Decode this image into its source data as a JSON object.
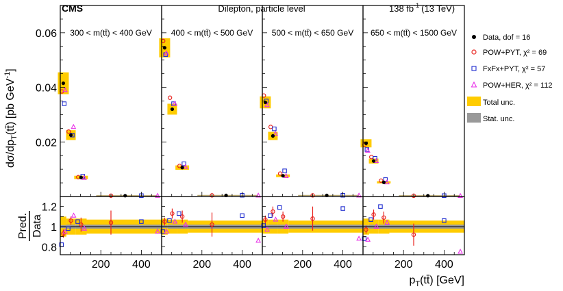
{
  "chart_data": {
    "type": "scatter",
    "header": {
      "experiment": "CMS",
      "channel": "Dilepton, particle level",
      "lumi": "138 fb",
      "lumi_exp": "-1",
      "energy": "(13 TeV)"
    },
    "ylabel_top": {
      "main": "dσ/dp",
      "sub": "T",
      "paren": "(tt̄) [pb GeV",
      "sup": "-1",
      "close": "]"
    },
    "ylabel_bottom": {
      "numerator": "Pred.",
      "denominator": "Data"
    },
    "xlabel": {
      "main": "p",
      "sub": "T",
      "rest": "(tt̄) [GeV]"
    },
    "top_yticks": [
      "0.02",
      "0.04",
      "0.06"
    ],
    "top_ytick_values": [
      0.02,
      0.04,
      0.06
    ],
    "bottom_yticks": [
      "0.8",
      "1",
      "1.2"
    ],
    "bottom_ytick_values": [
      0.8,
      1.0,
      1.2
    ],
    "xticks": [
      "200",
      "400"
    ],
    "xtick_values": [
      200,
      400
    ],
    "xlim": [
      0,
      500
    ],
    "ylim_top": [
      0,
      0.07
    ],
    "ylim_bottom": [
      0.72,
      1.3
    ],
    "bin_edges": [
      0,
      30,
      75,
      130,
      500
    ],
    "legend": [
      {
        "label": "Data, dof = 16",
        "marker": "dot"
      },
      {
        "label": "POW+PYT, χ² = 69",
        "marker": "circle"
      },
      {
        "label": "FxFx+PYT, χ² = 57",
        "marker": "square"
      },
      {
        "label": "POW+HER, χ² = 112",
        "marker": "triangle"
      },
      {
        "label": "Total unc.",
        "marker": "box-total"
      },
      {
        "label": "Stat. unc.",
        "marker": "box-stat"
      }
    ],
    "colors": {
      "data": "#000000",
      "pow_pyt": "#e8231f",
      "fxfx_pyt": "#1f2ccf",
      "pow_her": "#e830e8",
      "total_unc": "#ffcc00",
      "stat_unc": "#999999",
      "model_hline": "#b6a66f"
    },
    "panels": [
      {
        "label": "300 < m(tt̄) < 400 GeV",
        "data": [
          0.0415,
          0.0225,
          0.007,
          0.0003
        ],
        "total_unc": [
          0.004,
          0.0018,
          0.0006,
          8e-05
        ],
        "pow_pyt": [
          0.0385,
          0.0238,
          0.0071,
          0.00031
        ],
        "fxfx_pyt": [
          0.034,
          0.0225,
          0.0074,
          0.00032
        ],
        "pow_her": [
          0.039,
          0.0255,
          0.0068,
          0.00029
        ],
        "ratio": {
          "pow_pyt": [
            0.93,
            1.06,
            1.02,
            1.04
          ],
          "fxfx_pyt": [
            0.82,
            0.98,
            1.05,
            1.05
          ],
          "pow_her": [
            0.95,
            1.11,
            0.98,
            0.95
          ],
          "err": [
            0.04,
            0.04,
            0.07,
            0.12
          ],
          "total_band": [
            0.1,
            0.08,
            0.08,
            0.07
          ],
          "stat_band": [
            0.015,
            0.02,
            0.02,
            0.02
          ]
        }
      },
      {
        "label": "400 < m(tt̄) < 500 GeV",
        "data": [
          0.0545,
          0.032,
          0.0106,
          0.0004
        ],
        "total_unc": [
          0.0035,
          0.002,
          0.0008,
          0.0001
        ],
        "pow_pyt": [
          0.057,
          0.0362,
          0.0112,
          0.00042
        ],
        "fxfx_pyt": [
          0.052,
          0.034,
          0.012,
          0.00045
        ],
        "pow_her": [
          0.0525,
          0.034,
          0.0108,
          0.00036
        ],
        "ratio": {
          "pow_pyt": [
            1.05,
            1.13,
            1.1,
            1.02
          ],
          "fxfx_pyt": [
            0.95,
            1.06,
            1.13,
            1.11
          ],
          "pow_her": [
            0.95,
            1.05,
            1.02,
            0.86
          ],
          "err": [
            0.04,
            0.05,
            0.06,
            0.12
          ],
          "total_band": [
            0.08,
            0.07,
            0.07,
            0.06
          ],
          "stat_band": [
            0.015,
            0.02,
            0.02,
            0.02
          ]
        }
      },
      {
        "label": "500 < m(tt̄) < 650 GeV",
        "data": [
          0.0345,
          0.0222,
          0.0076,
          0.0004
        ],
        "total_unc": [
          0.0022,
          0.0015,
          0.0005,
          0.0001
        ],
        "pow_pyt": [
          0.037,
          0.0255,
          0.0084,
          0.00042
        ],
        "fxfx_pyt": [
          0.035,
          0.0248,
          0.0094,
          0.00045
        ],
        "pow_her": [
          0.0335,
          0.023,
          0.0075,
          0.00036
        ],
        "ratio": {
          "pow_pyt": [
            1.07,
            1.15,
            1.1,
            1.08
          ],
          "fxfx_pyt": [
            1.01,
            1.11,
            1.19,
            1.18
          ],
          "pow_her": [
            0.97,
            1.07,
            1.0,
            0.88
          ],
          "err": [
            0.04,
            0.05,
            0.05,
            0.12
          ],
          "total_band": [
            0.07,
            0.07,
            0.07,
            0.06
          ],
          "stat_band": [
            0.015,
            0.02,
            0.02,
            0.02
          ]
        }
      },
      {
        "label": "650 < m(tt̄) < 1500 GeV",
        "data": [
          0.0195,
          0.013,
          0.0052,
          0.0003
        ],
        "total_unc": [
          0.0015,
          0.0009,
          0.0004,
          0.0001
        ],
        "pow_pyt": [
          0.019,
          0.0145,
          0.0058,
          0.00028
        ],
        "fxfx_pyt": [
          0.0172,
          0.014,
          0.0062,
          0.00032
        ],
        "pow_her": [
          0.0168,
          0.013,
          0.0052,
          0.00022
        ],
        "ratio": {
          "pow_pyt": [
            0.97,
            1.12,
            1.09,
            0.92
          ],
          "fxfx_pyt": [
            0.88,
            1.07,
            1.2,
            1.06
          ],
          "pow_her": [
            0.87,
            1.0,
            1.04,
            0.75
          ],
          "err": [
            0.04,
            0.05,
            0.06,
            0.11
          ],
          "total_band": [
            0.08,
            0.07,
            0.07,
            0.06
          ],
          "stat_band": [
            0.015,
            0.02,
            0.02,
            0.02
          ]
        }
      }
    ]
  }
}
